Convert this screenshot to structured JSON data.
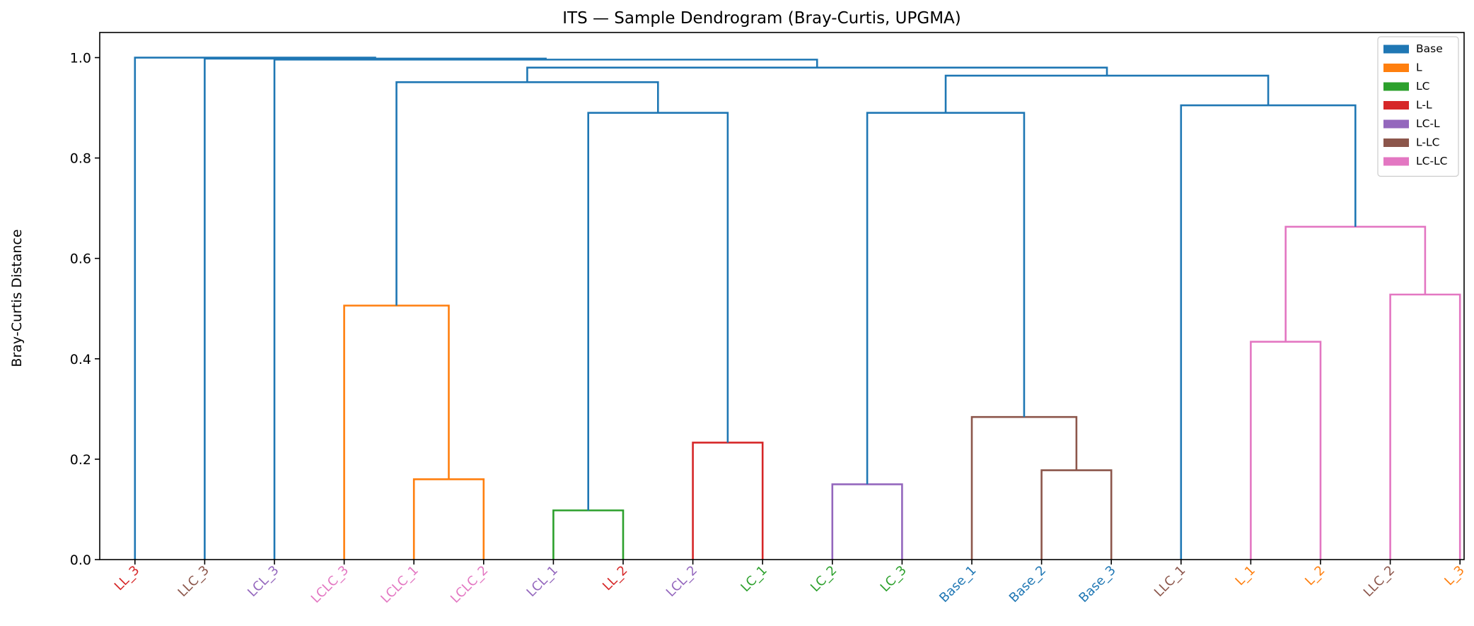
{
  "chart_data": {
    "type": "dendrogram",
    "title": "ITS — Sample Dendrogram (Bray-Curtis, UPGMA)",
    "xlabel": "",
    "ylabel": "Bray-Curtis Distance",
    "ylim": [
      0,
      1.05
    ],
    "yticks": [
      "0.0",
      "0.2",
      "0.4",
      "0.6",
      "0.8",
      "1.0"
    ],
    "ytick_values": [
      0.0,
      0.2,
      0.4,
      0.6,
      0.8,
      1.0
    ],
    "grid": false,
    "legend_position": "top-right",
    "groups": [
      {
        "name": "Base",
        "color": "#1f77b4"
      },
      {
        "name": "L",
        "color": "#ff7f0e"
      },
      {
        "name": "LC",
        "color": "#2ca02c"
      },
      {
        "name": "L-L",
        "color": "#d62728"
      },
      {
        "name": "LC-L",
        "color": "#9467bd"
      },
      {
        "name": "L-LC",
        "color": "#8c564b"
      },
      {
        "name": "LC-LC",
        "color": "#e377c2"
      }
    ],
    "leaves": [
      {
        "label": "LL_3",
        "group": "L-L"
      },
      {
        "label": "LLC_3",
        "group": "L-LC"
      },
      {
        "label": "LCL_3",
        "group": "LC-L"
      },
      {
        "label": "LCLC_3",
        "group": "LC-LC"
      },
      {
        "label": "LCLC_1",
        "group": "LC-LC"
      },
      {
        "label": "LCLC_2",
        "group": "LC-LC"
      },
      {
        "label": "LCL_1",
        "group": "LC-L"
      },
      {
        "label": "LL_2",
        "group": "L-L"
      },
      {
        "label": "LCL_2",
        "group": "LC-L"
      },
      {
        "label": "LC_1",
        "group": "LC"
      },
      {
        "label": "LC_2",
        "group": "LC"
      },
      {
        "label": "LC_3",
        "group": "LC"
      },
      {
        "label": "Base_1",
        "group": "Base"
      },
      {
        "label": "Base_2",
        "group": "Base"
      },
      {
        "label": "Base_3",
        "group": "Base"
      },
      {
        "label": "LLC_1",
        "group": "L-LC"
      },
      {
        "label": "L_1",
        "group": "L"
      },
      {
        "label": "L_2",
        "group": "L"
      },
      {
        "label": "LLC_2",
        "group": "L-LC"
      },
      {
        "label": "L_3",
        "group": "L"
      }
    ],
    "link_colors": {
      "above_threshold": "#1f77b4",
      "cluster_orange": "#ff7f0e",
      "cluster_green": "#2ca02c",
      "cluster_red": "#d62728",
      "cluster_purple": "#9467bd",
      "cluster_brown": "#8c564b",
      "cluster_pink": "#e377c2"
    },
    "merges": [
      {
        "id": "m1",
        "left": "LCLC_1",
        "right": "LCLC_2",
        "height": 0.16,
        "color": "#ff7f0e"
      },
      {
        "id": "m2",
        "left": "LCLC_3",
        "right": "m1",
        "height": 0.506,
        "color": "#ff7f0e"
      },
      {
        "id": "m3",
        "left": "LCL_1",
        "right": "LL_2",
        "height": 0.098,
        "color": "#2ca02c"
      },
      {
        "id": "m4",
        "left": "LCL_2",
        "right": "LC_1",
        "height": 0.233,
        "color": "#d62728"
      },
      {
        "id": "m5",
        "left": "m3",
        "right": "m4",
        "height": 0.89,
        "color": "#1f77b4"
      },
      {
        "id": "m6",
        "left": "m2",
        "right": "m5",
        "height": 0.951,
        "color": "#1f77b4"
      },
      {
        "id": "m7",
        "left": "LC_2",
        "right": "LC_3",
        "height": 0.15,
        "color": "#9467bd"
      },
      {
        "id": "m8",
        "left": "Base_2",
        "right": "Base_3",
        "height": 0.178,
        "color": "#8c564b"
      },
      {
        "id": "m9",
        "left": "Base_1",
        "right": "m8",
        "height": 0.284,
        "color": "#8c564b"
      },
      {
        "id": "m10",
        "left": "m7",
        "right": "m9",
        "height": 0.89,
        "color": "#1f77b4"
      },
      {
        "id": "m11",
        "left": "L_1",
        "right": "L_2",
        "height": 0.434,
        "color": "#e377c2"
      },
      {
        "id": "m12",
        "left": "LLC_2",
        "right": "L_3",
        "height": 0.528,
        "color": "#e377c2"
      },
      {
        "id": "m13",
        "left": "m11",
        "right": "m12",
        "height": 0.663,
        "color": "#e377c2"
      },
      {
        "id": "m14",
        "left": "LLC_1",
        "right": "m13",
        "height": 0.905,
        "color": "#1f77b4"
      },
      {
        "id": "m15",
        "left": "m10",
        "right": "m14",
        "height": 0.964,
        "color": "#1f77b4"
      },
      {
        "id": "m16",
        "left": "m6",
        "right": "m15",
        "height": 0.98,
        "color": "#1f77b4"
      },
      {
        "id": "m17",
        "left": "LCL_3",
        "right": "m16",
        "height": 0.996,
        "color": "#1f77b4"
      },
      {
        "id": "m18",
        "left": "LLC_3",
        "right": "m17",
        "height": 0.998,
        "color": "#1f77b4"
      },
      {
        "id": "m19",
        "left": "LL_3",
        "right": "m18",
        "height": 1.0,
        "color": "#1f77b4"
      }
    ]
  }
}
